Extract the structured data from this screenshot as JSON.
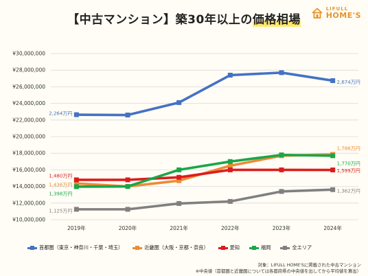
{
  "title_prefix": "【中古マンション】築30年以上の",
  "title_highlight": "価格相場",
  "logo": {
    "line1": "LIFULL",
    "line2": "HOME'S"
  },
  "notes": [
    "対象：LIFULL HOME'Sに掲載された中古マンション",
    "※中央値（首都圏と近畿圏については各都府県の中央値を出してから平均値を算出）"
  ],
  "chart_data": {
    "type": "line",
    "title": "【中古マンション】築30年以上の価格相場",
    "categories": [
      "2019年",
      "2020年",
      "2021年",
      "2022年",
      "2023年",
      "2024年"
    ],
    "ylim": [
      10000000,
      30000000
    ],
    "yticks": [
      {
        "value": 10000000,
        "label": "¥10,000,000"
      },
      {
        "value": 12000000,
        "label": "¥12,000,000"
      },
      {
        "value": 14000000,
        "label": "¥14,000,000"
      },
      {
        "value": 16000000,
        "label": "¥16,000,000"
      },
      {
        "value": 18000000,
        "label": "¥18,000,000"
      },
      {
        "value": 20000000,
        "label": "¥20,000,000"
      },
      {
        "value": 22000000,
        "label": "¥22,000,000"
      },
      {
        "value": 24000000,
        "label": "¥24,000,000"
      },
      {
        "value": 26000000,
        "label": "¥26,000,000"
      },
      {
        "value": 28000000,
        "label": "¥28,000,000"
      },
      {
        "value": 30000000,
        "label": "¥30,000,000"
      }
    ],
    "grid": true,
    "legend_position": "bottom",
    "series": [
      {
        "name": "首都圏（東京・神奈川・千葉・埼玉）",
        "color": "#4472c4",
        "values": [
          22640000,
          22600000,
          24100000,
          27400000,
          27700000,
          26740000
        ],
        "start_label": "2,264万円",
        "end_label": "2,674万円"
      },
      {
        "name": "近畿圏（大阪・京都・奈良）",
        "color": "#ed8b34",
        "values": [
          14360000,
          14000000,
          14700000,
          16500000,
          17700000,
          17860000
        ],
        "start_label": "1,436万円",
        "end_label": "1,786万円"
      },
      {
        "name": "愛知",
        "color": "#dd1c1c",
        "values": [
          14800000,
          14800000,
          15100000,
          16000000,
          16000000,
          15990000
        ],
        "start_label": "1,480万円",
        "end_label": "1,599万円"
      },
      {
        "name": "福岡",
        "color": "#1aa64a",
        "values": [
          13980000,
          14000000,
          16000000,
          17000000,
          17800000,
          17700000
        ],
        "start_label": "1,398万円",
        "end_label": "1,770万円"
      },
      {
        "name": "全エリア",
        "color": "#808080",
        "values": [
          11250000,
          11250000,
          11950000,
          12200000,
          13400000,
          13620000
        ],
        "start_label": "1,125万円",
        "end_label": "1,362万円"
      }
    ]
  }
}
